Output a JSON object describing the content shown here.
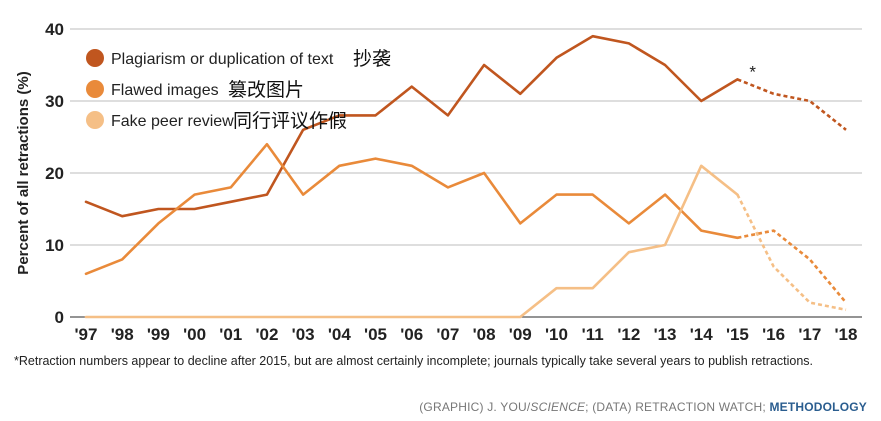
{
  "chart_data": {
    "type": "line",
    "title": "",
    "xlabel": "",
    "ylabel": "Percent of all retractions (%)",
    "ylim": [
      0,
      40
    ],
    "y_ticks": [
      0,
      10,
      20,
      30,
      40
    ],
    "grid": true,
    "legend_position": "top-left",
    "categories": [
      "'97",
      "'98",
      "'99",
      "'00",
      "'01",
      "'02",
      "'03",
      "'04",
      "'05",
      "'06",
      "'07",
      "'08",
      "'09",
      "'10",
      "'11",
      "'12",
      "'13",
      "'14",
      "'15",
      "'16",
      "'17",
      "'18"
    ],
    "dashed_from": "'15",
    "series": [
      {
        "name": "Plagiarism or duplication of text",
        "name_cn": "抄袭",
        "color": "#c0561f",
        "values": [
          16,
          14,
          15,
          15,
          16,
          17,
          26,
          28,
          28,
          32,
          28,
          35,
          31,
          36,
          39,
          38,
          35,
          30,
          33,
          31,
          30,
          26
        ]
      },
      {
        "name": "Flawed images",
        "name_cn": "篡改图片",
        "color": "#e98a3a",
        "values": [
          6,
          8,
          13,
          17,
          18,
          24,
          17,
          21,
          22,
          21,
          18,
          20,
          13,
          17,
          17,
          13,
          17,
          12,
          11,
          12,
          8,
          2
        ]
      },
      {
        "name": "Fake peer review",
        "name_cn": "同行评议作假",
        "color": "#f5bf86",
        "values": [
          0,
          0,
          0,
          0,
          0,
          0,
          0,
          0,
          0,
          0,
          0,
          0,
          0,
          4,
          4,
          9,
          10,
          21,
          17,
          7,
          2,
          1
        ]
      }
    ],
    "annotations": [
      {
        "text": "*",
        "x": "'15",
        "series": 0
      }
    ]
  },
  "footnote": "*Retraction numbers appear to decline after 2015, but are almost certainly incomplete; journals typically take several years to publish retractions.",
  "credit": {
    "part1": "(GRAPHIC) J. YOU/",
    "part2": "SCIENCE",
    "part3": "; (DATA) RETRACTION WATCH; ",
    "link": "METHODOLOGY"
  }
}
